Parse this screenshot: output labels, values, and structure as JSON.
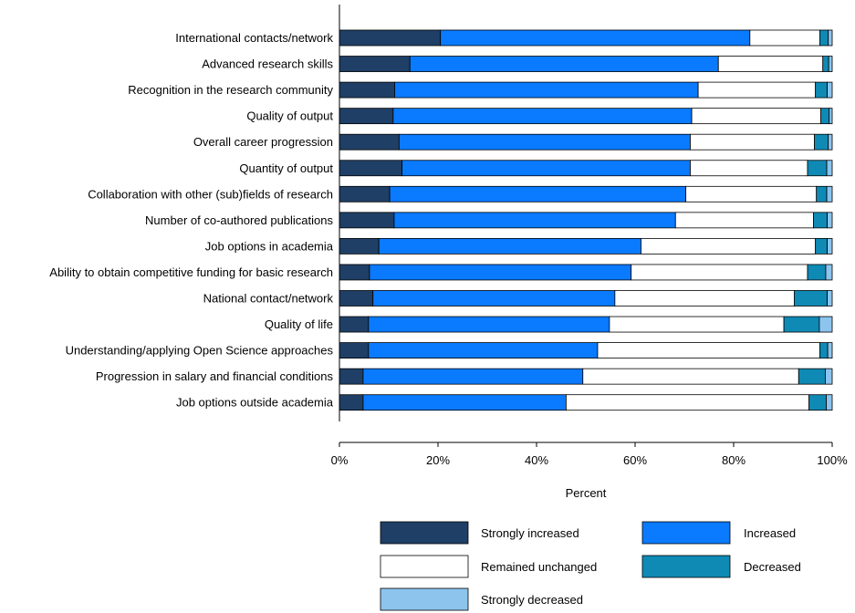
{
  "chart_data": {
    "type": "bar",
    "orientation": "horizontal",
    "stacked": true,
    "title": "",
    "xlabel": "Percent",
    "ylabel": "",
    "xlim": [
      0,
      100
    ],
    "x_ticks": [
      "0%",
      "20%",
      "40%",
      "60%",
      "80%",
      "100%"
    ],
    "grid": false,
    "legend_position": "bottom",
    "categories": [
      "International contacts/network",
      "Advanced research skills",
      "Recognition in the research community",
      "Quality of output",
      "Overall career progression",
      "Quantity of output",
      "Collaboration with other (sub)fields of research",
      "Number of co-authored publications",
      "Job options in academia",
      "Ability to obtain competitive funding for basic research",
      "National contact/network",
      "Quality of life",
      "Understanding/applying Open Science approaches",
      "Progression in salary and financial conditions",
      "Job options outside academia"
    ],
    "series": [
      {
        "name": "Strongly increased",
        "color": "#1f3f66",
        "values": [
          20.5,
          14.3,
          11.2,
          10.9,
          12.1,
          12.7,
          10.2,
          11.1,
          8.0,
          6.1,
          6.8,
          5.9,
          5.9,
          4.8,
          4.8
        ]
      },
      {
        "name": "Increased",
        "color": "#0a7aff",
        "values": [
          62.8,
          62.6,
          61.6,
          60.6,
          59.1,
          58.5,
          60.1,
          57.1,
          53.2,
          53.1,
          49.1,
          48.9,
          46.5,
          44.6,
          41.2
        ]
      },
      {
        "name": "Remained unchanged",
        "color": "#ffffff",
        "values": [
          14.2,
          21.2,
          23.8,
          26.2,
          25.2,
          23.8,
          26.5,
          28.0,
          35.4,
          35.8,
          36.4,
          35.4,
          45.1,
          43.8,
          49.3
        ]
      },
      {
        "name": "Decreased",
        "color": "#0f8ab5",
        "values": [
          1.7,
          1.2,
          2.4,
          1.7,
          2.8,
          3.9,
          2.1,
          2.8,
          2.4,
          3.7,
          6.7,
          7.2,
          1.6,
          5.4,
          3.5
        ]
      },
      {
        "name": "Strongly decreased",
        "color": "#8cc4ee",
        "values": [
          0.8,
          0.7,
          1.0,
          0.6,
          0.8,
          1.1,
          1.1,
          1.0,
          1.0,
          1.3,
          1.0,
          2.6,
          0.9,
          1.4,
          1.2
        ]
      }
    ]
  }
}
